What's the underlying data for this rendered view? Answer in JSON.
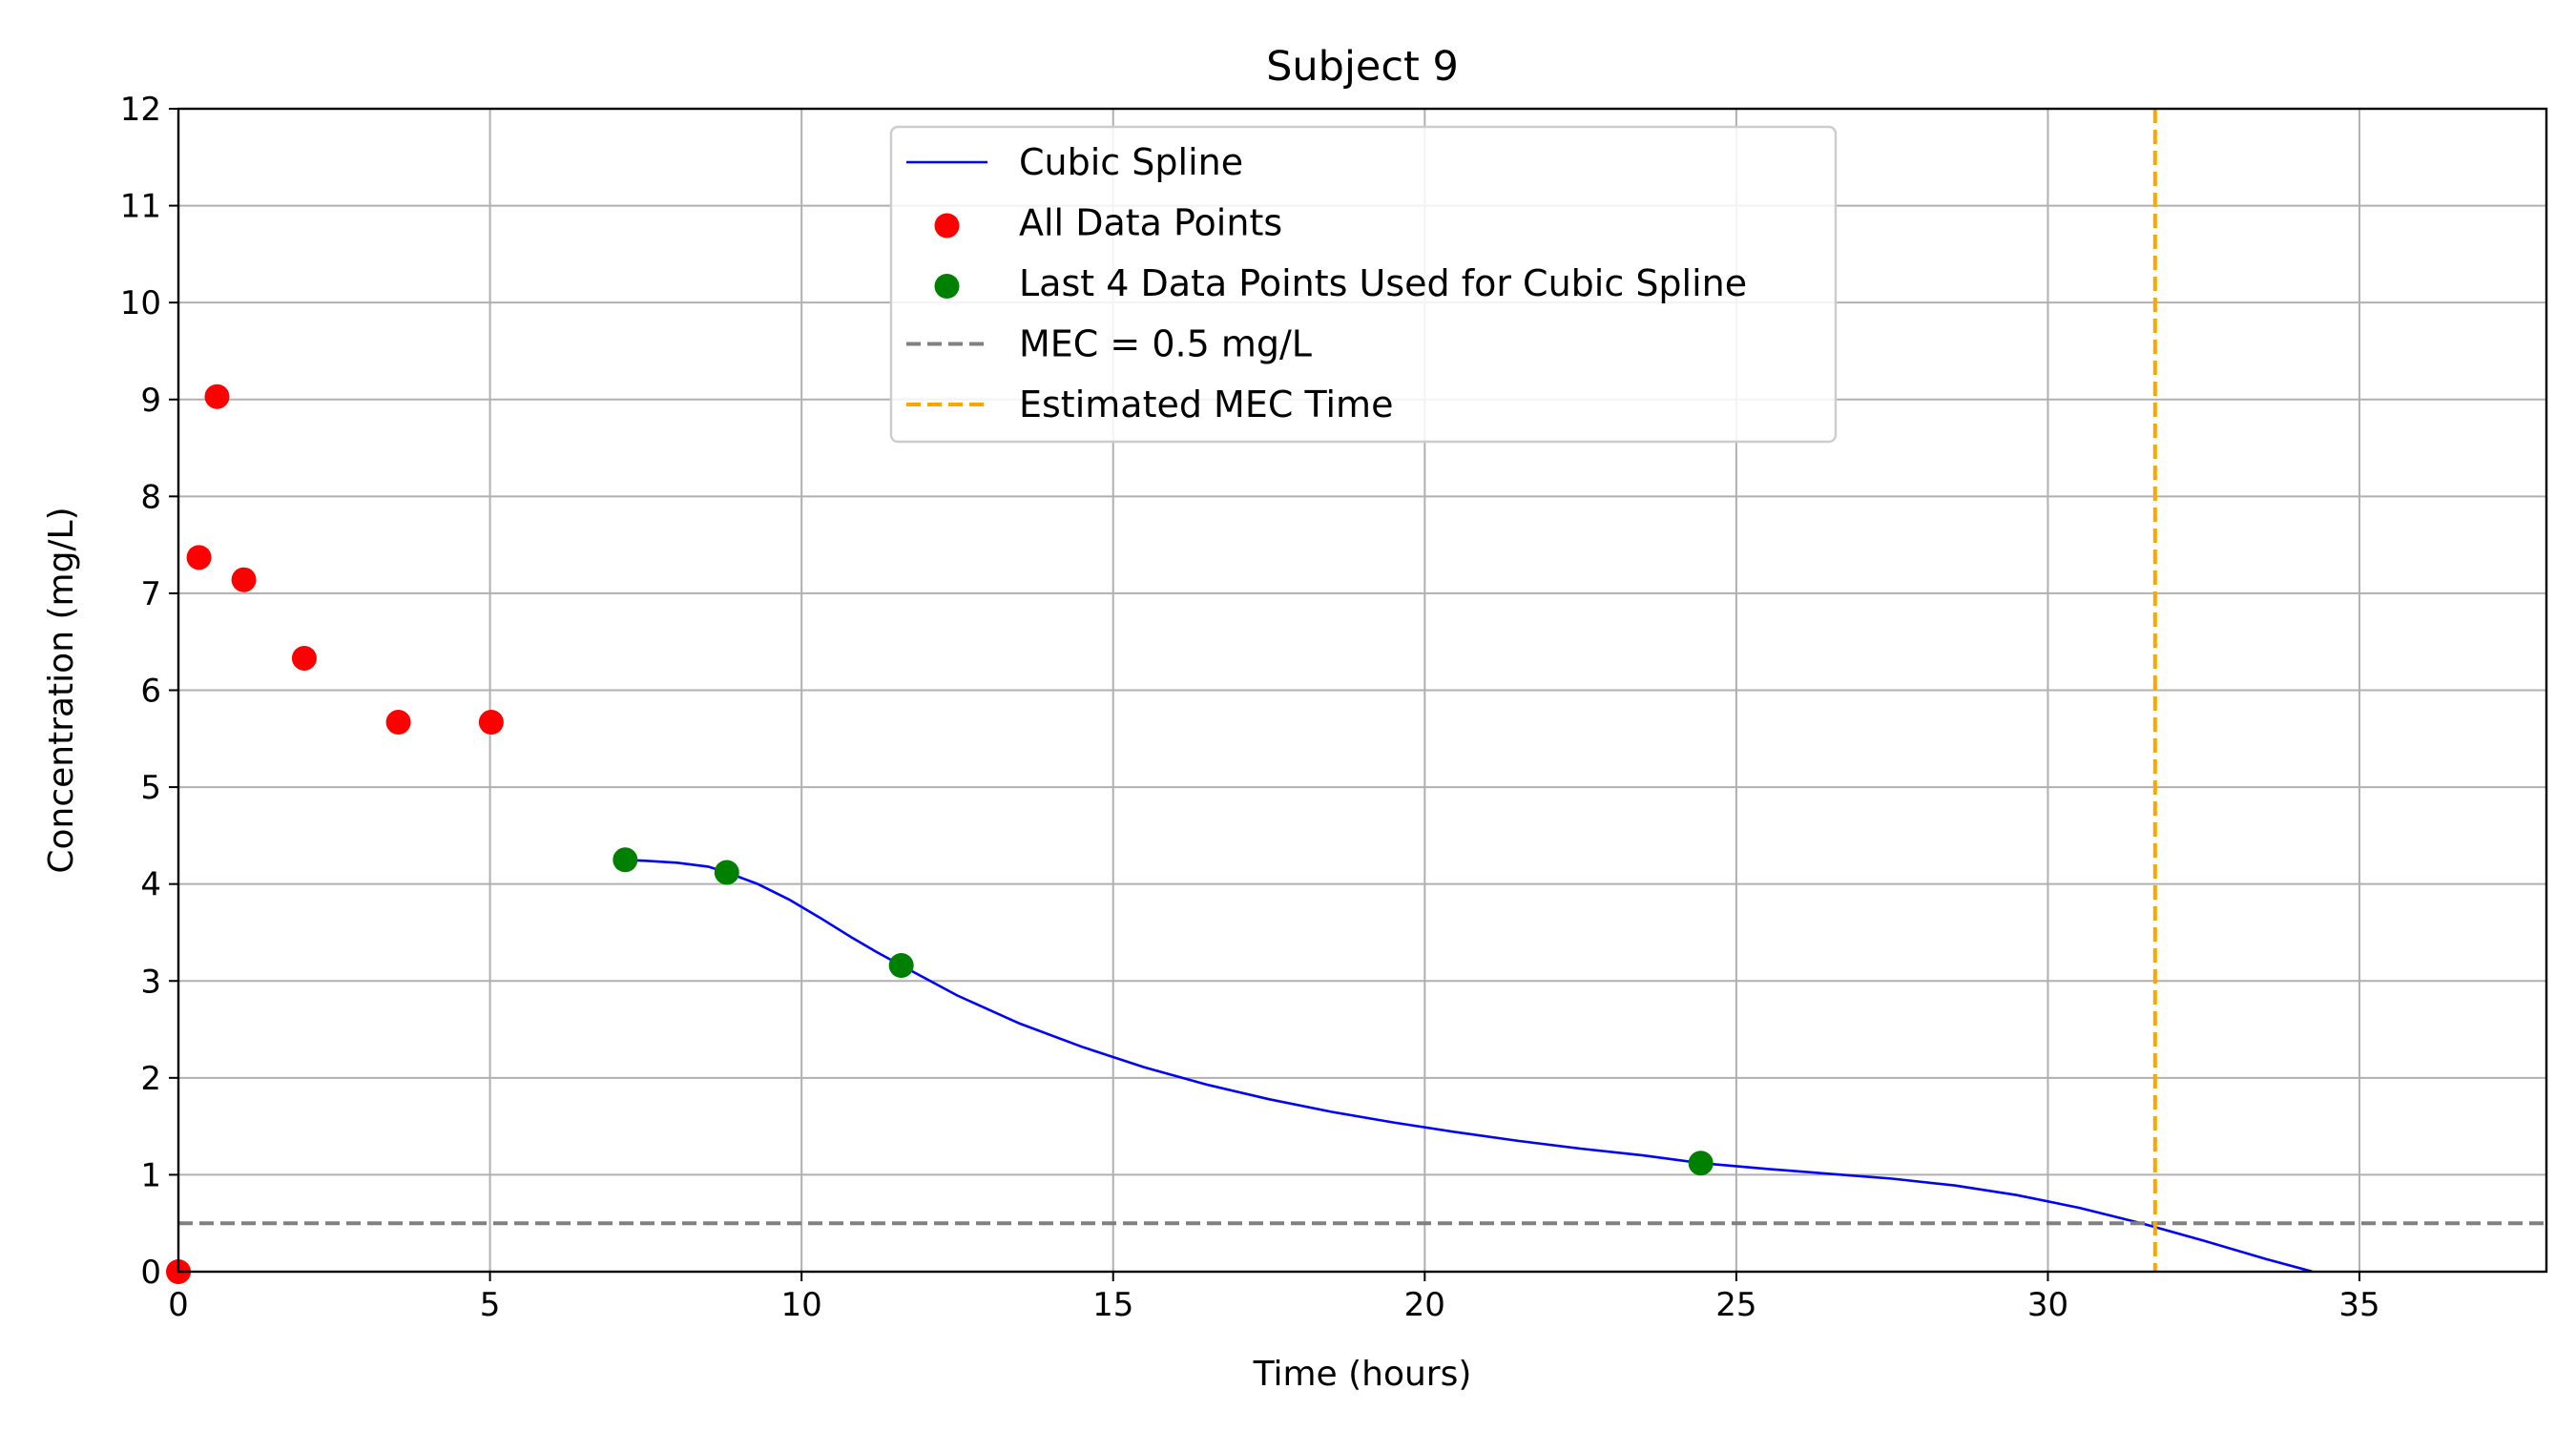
{
  "chart_data": {
    "type": "line",
    "title": "Subject 9",
    "xlabel": "Time (hours)",
    "ylabel": "Concentration (mg/L)",
    "xlim": [
      0,
      38
    ],
    "ylim": [
      0,
      12
    ],
    "xticks": [
      0,
      5,
      10,
      15,
      20,
      25,
      30,
      35
    ],
    "yticks": [
      0,
      1,
      2,
      3,
      4,
      5,
      6,
      7,
      8,
      9,
      10,
      11,
      12
    ],
    "grid": true,
    "legend_position": "upper-center",
    "series": [
      {
        "name": "Cubic Spline",
        "kind": "line",
        "color": "#0000ff",
        "x": [
          7.17,
          7.5,
          8.0,
          8.5,
          8.8,
          9.3,
          9.8,
          10.3,
          10.8,
          11.2,
          11.6,
          12.5,
          13.5,
          14.5,
          15.5,
          16.5,
          17.5,
          18.5,
          19.5,
          20.5,
          21.5,
          22.5,
          23.5,
          24.43,
          25.5,
          26.5,
          27.5,
          28.5,
          29.5,
          30.5,
          31.5,
          32.5,
          33.5,
          34.25
        ],
        "y": [
          4.25,
          4.24,
          4.22,
          4.18,
          4.12,
          4.0,
          3.84,
          3.65,
          3.45,
          3.3,
          3.16,
          2.85,
          2.56,
          2.32,
          2.11,
          1.93,
          1.78,
          1.65,
          1.54,
          1.44,
          1.35,
          1.27,
          1.2,
          1.12,
          1.06,
          1.01,
          0.96,
          0.89,
          0.79,
          0.66,
          0.5,
          0.32,
          0.13,
          0.0
        ]
      },
      {
        "name": "All Data Points",
        "kind": "scatter",
        "color": "#ff0000",
        "x": [
          0,
          0.33,
          0.62,
          1.05,
          2.02,
          3.53,
          5.02
        ],
        "y": [
          0,
          7.37,
          9.03,
          7.14,
          6.33,
          5.67,
          5.67
        ]
      },
      {
        "name": "Last 4 Data Points Used for Cubic Spline",
        "kind": "scatter",
        "color": "#008000",
        "x": [
          7.17,
          8.8,
          11.6,
          24.43
        ],
        "y": [
          4.25,
          4.12,
          3.16,
          1.12
        ]
      },
      {
        "name": "MEC = 0.5 mg/L",
        "kind": "hline",
        "color": "#808080",
        "y": 0.5
      },
      {
        "name": "Estimated MEC Time",
        "kind": "vline",
        "color": "#ffa500",
        "x": 31.72
      }
    ]
  }
}
